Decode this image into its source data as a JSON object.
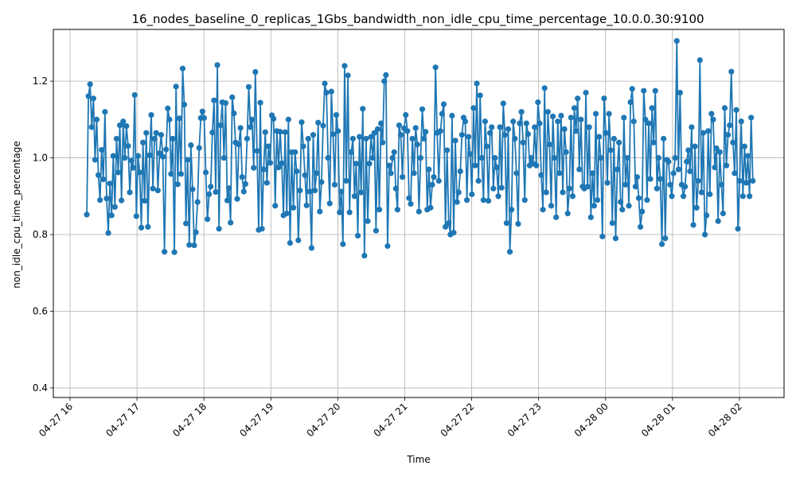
{
  "chart_data": {
    "type": "line",
    "title": "16_nodes_baseline_0_replicas_1Gbs_bandwidth_non_idle_cpu_time_percentage_10.0.0.30:9100",
    "xlabel": "Time",
    "ylabel": "non_idle_cpu_time_percentage",
    "x_ticks": [
      "04-27 16",
      "04-27 17",
      "04-27 18",
      "04-27 19",
      "04-27 20",
      "04-27 21",
      "04-27 22",
      "04-27 23",
      "04-28 00",
      "04-28 01",
      "04-28 02"
    ],
    "y_ticks": [
      "0.4",
      "0.6",
      "0.8",
      "1.0",
      "1.2"
    ],
    "xlim": [
      "2024-04-27 15:45",
      "2024-04-28 02:40"
    ],
    "ylim": [
      0.375,
      1.335
    ],
    "grid": true,
    "marker": "circle",
    "color": "#1f77b4",
    "series": [
      {
        "x_start": "2024-04-27 16:15",
        "x_end": "2024-04-28 02:12",
        "y": [
          0.852,
          1.161,
          1.192,
          1.08,
          1.155,
          0.995,
          1.1,
          0.955,
          0.89,
          1.021,
          0.944,
          1.12,
          0.894,
          0.804,
          0.933,
          0.85,
          1.005,
          0.872,
          1.05,
          0.962,
          1.085,
          0.889,
          1.095,
          1.0,
          1.083,
          1.031,
          0.91,
          0.993,
          0.974,
          1.164,
          0.848,
          1.005,
          0.962,
          0.818,
          1.04,
          0.888,
          1.065,
          0.82,
          1.007,
          1.112,
          0.92,
          1.05,
          1.065,
          0.915,
          1.012,
          1.06,
          1.003,
          0.755,
          1.022,
          1.129,
          1.1,
          0.958,
          1.05,
          0.754,
          1.186,
          0.931,
          1.103,
          0.958,
          1.233,
          1.139,
          0.829,
          0.995,
          0.773,
          1.033,
          0.918,
          0.772,
          0.806,
          0.885,
          1.026,
          1.104,
          1.121,
          1.104,
          0.962,
          0.84,
          0.905,
          0.925,
          1.066,
          1.15,
          0.911,
          1.242,
          0.815,
          1.085,
          1.145,
          1.0,
          1.143,
          0.889,
          0.921,
          0.831,
          1.158,
          1.116,
          1.04,
          0.893,
          1.035,
          1.078,
          0.95,
          0.912,
          0.932,
          1.05,
          1.185,
          1.08,
          1.1,
          0.974,
          1.224,
          1.018,
          0.812,
          1.144,
          0.815,
          0.97,
          1.067,
          0.935,
          1.03,
          0.987,
          1.111,
          1.102,
          0.875,
          1.07,
          0.975,
          1.068,
          0.986,
          0.85,
          1.067,
          0.855,
          1.1,
          0.778,
          1.015,
          0.87,
          1.015,
          0.965,
          0.785,
          0.915,
          1.093,
          1.03,
          0.955,
          0.876,
          1.05,
          0.912,
          0.765,
          1.06,
          0.915,
          0.96,
          1.092,
          0.86,
          0.937,
          1.084,
          1.194,
          1.17,
          1.0,
          0.881,
          1.173,
          1.062,
          0.93,
          1.112,
          1.07,
          0.858,
          0.912,
          0.775,
          1.24,
          0.94,
          1.215,
          0.858,
          1.015,
          1.05,
          0.9,
          0.985,
          0.797,
          1.055,
          0.91,
          1.128,
          0.745,
          1.05,
          0.835,
          0.985,
          1.055,
          1.0,
          1.065,
          0.81,
          1.075,
          0.865,
          1.09,
          1.04,
          1.2,
          1.216,
          0.77,
          0.98,
          0.96,
          1.0,
          1.015,
          0.92,
          0.865,
          1.085,
          1.06,
          0.95,
          1.077,
          1.112,
          1.07,
          0.895,
          0.88,
          1.05,
          0.96,
          1.078,
          1.035,
          0.86,
          1.0,
          1.127,
          1.05,
          1.068,
          0.865,
          0.97,
          0.87,
          0.93,
          0.95,
          1.236,
          1.065,
          0.94,
          1.07,
          1.115,
          1.14,
          0.82,
          1.02,
          0.83,
          0.8,
          1.11,
          0.805,
          1.045,
          0.885,
          0.91,
          0.965,
          1.06,
          1.105,
          1.095,
          0.89,
          1.055,
          1.01,
          0.905,
          1.13,
          0.98,
          1.194,
          0.94,
          1.163,
          1.0,
          0.89,
          1.095,
          1.03,
          0.888,
          1.065,
          1.08,
          0.92,
          1.0,
          0.975,
          0.9,
          1.08,
          0.922,
          1.142,
          1.06,
          0.83,
          1.075,
          0.755,
          0.865,
          1.095,
          1.05,
          0.96,
          0.828,
          1.09,
          1.12,
          1.04,
          0.89,
          1.09,
          1.062,
          0.98,
          1.0,
          0.985,
          1.08,
          0.98,
          1.145,
          1.09,
          0.955,
          0.865,
          1.182,
          0.91,
          1.12,
          1.035,
          0.875,
          1.108,
          1.0,
          0.845,
          1.095,
          0.96,
          1.11,
          0.91,
          1.075,
          1.015,
          0.855,
          0.92,
          1.105,
          0.9,
          1.13,
          1.07,
          1.155,
          0.97,
          1.1,
          0.925,
          0.92,
          1.17,
          0.925,
          1.08,
          0.845,
          0.96,
          0.875,
          1.115,
          0.89,
          1.055,
          1.0,
          0.795,
          1.155,
          1.065,
          0.935,
          1.115,
          1.02,
          0.83,
          1.05,
          0.79,
          0.97,
          1.04,
          0.885,
          0.865,
          1.105,
          0.93,
          1.0,
          0.875,
          1.145,
          1.18,
          1.095,
          0.925,
          0.95,
          0.895,
          0.82,
          0.86,
          1.175,
          1.1,
          0.89,
          1.09,
          0.945,
          1.13,
          1.04,
          1.175,
          0.92,
          1.0,
          0.945,
          0.775,
          1.05,
          0.79,
          0.995,
          0.99,
          0.93,
          0.9,
          0.96,
          1.0,
          1.305,
          0.97,
          1.17,
          0.93,
          0.9,
          0.925,
          0.99,
          1.02,
          0.965,
          1.08,
          0.825,
          1.03,
          0.87,
          0.94,
          1.255,
          0.91,
          1.065,
          0.8,
          0.85,
          1.07,
          0.905,
          1.115,
          1.1,
          0.975,
          1.025,
          0.835,
          1.015,
          0.93,
          0.855,
          1.13,
          0.98,
          1.06,
          1.085,
          1.225,
          1.04,
          0.96,
          1.125,
          0.815,
          0.94,
          1.095,
          0.9,
          1.03,
          0.935,
          1.005,
          0.9,
          1.105,
          0.94
        ]
      }
    ]
  }
}
